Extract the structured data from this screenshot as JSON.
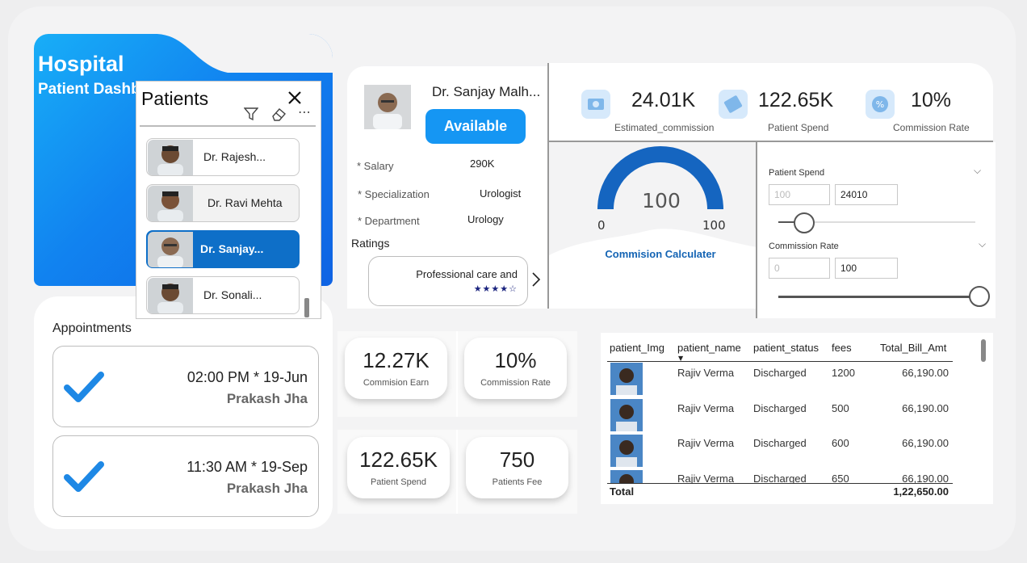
{
  "banner": {
    "title": "Hospital",
    "subtitle": "Patient Dashboard"
  },
  "patients_slicer": {
    "title": "Patients",
    "items": [
      {
        "label": "Dr. Rajesh..."
      },
      {
        "label": "Dr. Ravi Mehta"
      },
      {
        "label": "Dr. Sanjay...",
        "selected": true
      },
      {
        "label": "Dr. Sonali..."
      }
    ]
  },
  "doctor": {
    "name": "Dr. Sanjay Malh...",
    "status": "Available",
    "fields": [
      {
        "label": "* Salary",
        "value": "290K"
      },
      {
        "label": "* Specialization",
        "value": "Urologist"
      },
      {
        "label": "* Department",
        "value": "Urology"
      }
    ],
    "ratings_label": "Ratings",
    "review_text": "Professional care and",
    "review_stars": "★★★★☆"
  },
  "kpis": [
    {
      "value": "24.01K",
      "label": "Estimated_commission",
      "icon": "money-icon"
    },
    {
      "value": "122.65K",
      "label": "Patient Spend",
      "icon": "ticket-icon"
    },
    {
      "value": "10%",
      "label": "Commission Rate",
      "icon": "percent-icon"
    }
  ],
  "gauge": {
    "value": "100",
    "min": "0",
    "max": "100",
    "fill_fraction": 1.0,
    "label": "Commision Calculater"
  },
  "parameters": {
    "patient_spend": {
      "label": "Patient Spend",
      "min": "100",
      "value": "24010"
    },
    "commission_rate": {
      "label": "Commission Rate",
      "min": "0",
      "value": "100"
    }
  },
  "cards": [
    {
      "value": "12.27K",
      "label": "Commision Earn"
    },
    {
      "value": "10%",
      "label": "Commission Rate"
    },
    {
      "value": "122.65K",
      "label": "Patient Spend"
    },
    {
      "value": "750",
      "label": "Patients Fee"
    }
  ],
  "appointments": {
    "title": "Appointments",
    "items": [
      {
        "time": "02:00 PM * 19-Jun",
        "name": "Prakash Jha"
      },
      {
        "time": "11:30 AM * 19-Sep",
        "name": "Prakash Jha"
      }
    ]
  },
  "table": {
    "columns": [
      "patient_Img",
      "patient_name",
      "patient_status",
      "fees",
      "Total_Bill_Amt"
    ],
    "rows": [
      {
        "name": "Rajiv Verma",
        "status": "Discharged",
        "fees": "1200",
        "total": "66,190.00"
      },
      {
        "name": "Rajiv Verma",
        "status": "Discharged",
        "fees": "500",
        "total": "66,190.00"
      },
      {
        "name": "Rajiv Verma",
        "status": "Discharged",
        "fees": "600",
        "total": "66,190.00"
      },
      {
        "name": "Rajiv Verma",
        "status": "Discharged",
        "fees": "650",
        "total": "66,190.00"
      }
    ],
    "total_label": "Total",
    "total_value": "1,22,650.00"
  }
}
